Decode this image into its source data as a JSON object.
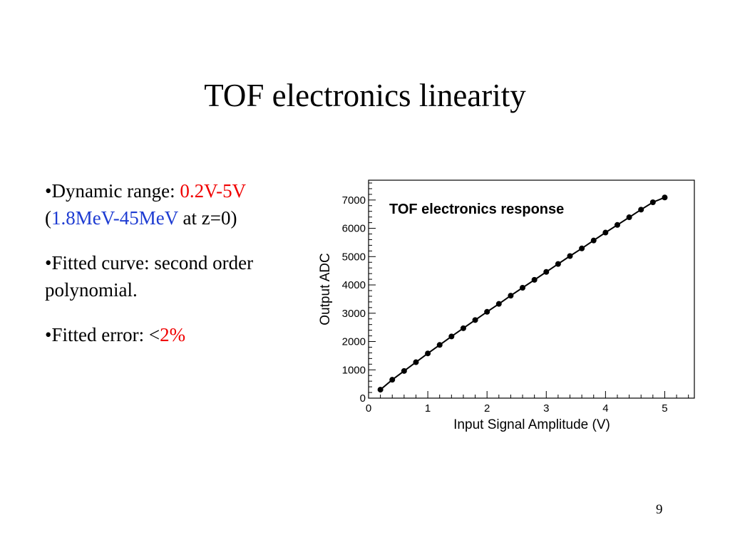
{
  "slide": {
    "title": "TOF electronics linearity",
    "page_number": "9"
  },
  "bullets": [
    {
      "marker": "•",
      "prefix": "Dynamic range: ",
      "highlight": "0.2V-5V",
      "line2_open": "(",
      "line2_highlight": "1.8MeV-45MeV",
      "line2_rest": " at z=0)"
    },
    {
      "marker": "•",
      "text": "Fitted curve: second order polynomial."
    },
    {
      "marker": "•",
      "prefix": "Fitted error: <",
      "highlight": "2%"
    }
  ],
  "colors": {
    "red": "#f00000",
    "blue": "#1e3cd2"
  },
  "chart_data": {
    "type": "line",
    "title": "TOF electronics response",
    "xlabel": "Input Signal Amplitude (V)",
    "ylabel": "Output ADC",
    "xlim": [
      0,
      5.5
    ],
    "ylim": [
      0,
      7700
    ],
    "xticks": [
      0,
      1,
      2,
      3,
      4,
      5
    ],
    "yticks": [
      0,
      1000,
      2000,
      3000,
      4000,
      5000,
      6000,
      7000
    ],
    "series": [
      {
        "x": [
          0.2,
          0.4,
          0.6,
          0.8,
          1.0,
          1.2,
          1.4,
          1.6,
          1.8,
          2.0,
          2.2,
          2.4,
          2.6,
          2.8,
          3.0,
          3.2,
          3.4,
          3.6,
          3.8,
          4.0,
          4.2,
          4.4,
          4.6,
          4.8,
          5.0
        ],
        "y": [
          300,
          650,
          960,
          1270,
          1580,
          1880,
          2180,
          2470,
          2760,
          3050,
          3330,
          3620,
          3900,
          4180,
          4460,
          4740,
          5020,
          5290,
          5570,
          5850,
          6120,
          6390,
          6660,
          6920,
          7090
        ]
      }
    ]
  }
}
